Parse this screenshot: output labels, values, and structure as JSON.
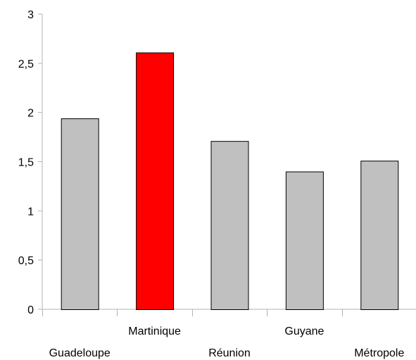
{
  "chart_data": {
    "type": "bar",
    "categories": [
      "Guadeloupe",
      "Martinique",
      "Réunion",
      "Guyane",
      "Métropole"
    ],
    "values": [
      1.94,
      2.61,
      1.71,
      1.4,
      1.51
    ],
    "colors": [
      "#c0c0c0",
      "#ff0000",
      "#c0c0c0",
      "#c0c0c0",
      "#c0c0c0"
    ],
    "ylim": [
      0,
      3
    ],
    "yticks": [
      0,
      0.5,
      1,
      1.5,
      2,
      2.5,
      3
    ],
    "ytick_labels": [
      "0",
      "0,5",
      "1",
      "1,5",
      "2",
      "2,5",
      "3"
    ],
    "label_rows": [
      "low",
      "high",
      "low",
      "high",
      "low"
    ],
    "grid": false,
    "legend": "none",
    "title": "",
    "xlabel": "",
    "ylabel": ""
  }
}
